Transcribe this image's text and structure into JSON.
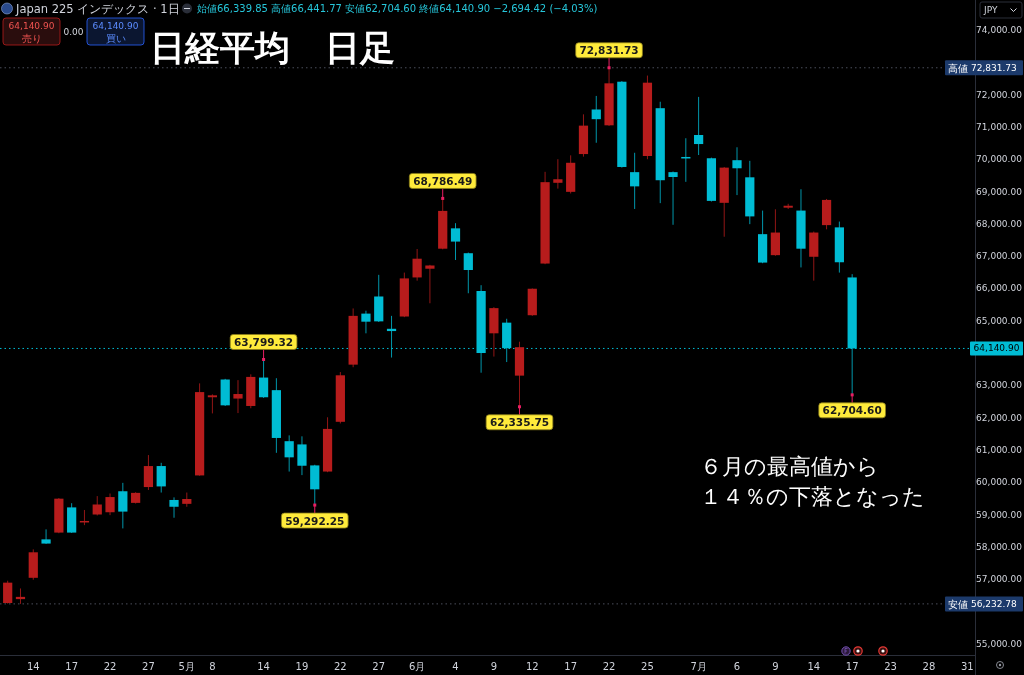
{
  "chart_data": {
    "type": "candlestick",
    "title": "日経平均　日足",
    "subtitle": "Japan 225 インデックス · 1日",
    "ylabel": "JPY",
    "categories": [
      null,
      null,
      "14",
      null,
      null,
      "17",
      null,
      null,
      "22",
      null,
      null,
      "27",
      null,
      null,
      "5月",
      null,
      "8",
      null,
      null,
      null,
      "14",
      null,
      null,
      "19",
      null,
      null,
      "22",
      null,
      null,
      "27",
      null,
      null,
      "6月",
      null,
      null,
      "4",
      null,
      null,
      "9",
      null,
      null,
      "12",
      null,
      null,
      "17",
      null,
      null,
      "22",
      null,
      null,
      "25",
      null,
      null,
      null,
      "7月",
      null,
      null,
      "6",
      null,
      null,
      "9",
      null,
      null,
      "14",
      null,
      null,
      "17",
      null,
      null,
      "23",
      null,
      null,
      "28",
      null,
      null,
      "31"
    ],
    "ohlc": [
      [
        56260,
        56950,
        56240,
        56890
      ],
      [
        56380,
        56710,
        56232.78,
        56450
      ],
      [
        57040,
        57920,
        56980,
        57830
      ],
      [
        58230,
        58540,
        58090,
        58100
      ],
      [
        58440,
        59510,
        58420,
        59490
      ],
      [
        59220,
        59350,
        58430,
        58440
      ],
      [
        58780,
        59140,
        58670,
        58800
      ],
      [
        59000,
        59570,
        58970,
        59310
      ],
      [
        59070,
        59650,
        58980,
        59540
      ],
      [
        59720,
        59980,
        58570,
        59090
      ],
      [
        59360,
        59690,
        59340,
        59670
      ],
      [
        59850,
        60840,
        59760,
        60500
      ],
      [
        60500,
        60600,
        59680,
        59870
      ],
      [
        59450,
        59530,
        58900,
        59240
      ],
      [
        59330,
        59680,
        59240,
        59480
      ],
      [
        60210,
        63060,
        60200,
        62790
      ],
      [
        62630,
        62720,
        62130,
        62690
      ],
      [
        63180,
        63200,
        62360,
        62380
      ],
      [
        62590,
        63160,
        62140,
        62730
      ],
      [
        62360,
        63340,
        62290,
        63260
      ],
      [
        63240,
        63799.32,
        62610,
        62630
      ],
      [
        62850,
        63220,
        60910,
        61370
      ],
      [
        61270,
        61450,
        60330,
        60770
      ],
      [
        61170,
        61420,
        60220,
        60510
      ],
      [
        60520,
        60540,
        59292.25,
        59780
      ],
      [
        60330,
        62010,
        60310,
        61650
      ],
      [
        61870,
        63410,
        61820,
        63310
      ],
      [
        63640,
        65380,
        63560,
        65150
      ],
      [
        65220,
        65310,
        64610,
        64970
      ],
      [
        65750,
        66420,
        64960,
        64980
      ],
      [
        64750,
        65150,
        63860,
        64680
      ],
      [
        65130,
        66490,
        65110,
        66310
      ],
      [
        66340,
        67220,
        66240,
        66920
      ],
      [
        66610,
        66730,
        65540,
        66710
      ],
      [
        67230,
        68786.49,
        67210,
        68400
      ],
      [
        67860,
        68020,
        66880,
        67450
      ],
      [
        67090,
        67110,
        65850,
        66570
      ],
      [
        65920,
        66100,
        63390,
        64000
      ],
      [
        64610,
        65420,
        63890,
        65390
      ],
      [
        64940,
        65060,
        63720,
        64150
      ],
      [
        63300,
        64350,
        62335.75,
        64180
      ],
      [
        65170,
        66000,
        65150,
        65990
      ],
      [
        66770,
        69610,
        66750,
        69290
      ],
      [
        69270,
        70000,
        69090,
        69380
      ],
      [
        68990,
        70120,
        68940,
        69890
      ],
      [
        70160,
        71390,
        70080,
        71040
      ],
      [
        71540,
        71960,
        70510,
        71240
      ],
      [
        71050,
        72831.73,
        71030,
        72350
      ],
      [
        72400,
        72420,
        69740,
        69760
      ],
      [
        69600,
        70200,
        68460,
        69160
      ],
      [
        70100,
        72590,
        70000,
        72370
      ],
      [
        71580,
        71780,
        68640,
        69350
      ],
      [
        69600,
        69620,
        67970,
        69450
      ],
      [
        70070,
        70650,
        69300,
        70050
      ],
      [
        70750,
        71930,
        70130,
        70470
      ],
      [
        70030,
        70050,
        68690,
        68710
      ],
      [
        68650,
        69760,
        67600,
        69740
      ],
      [
        69970,
        70370,
        68890,
        69720
      ],
      [
        69440,
        69950,
        67990,
        68230
      ],
      [
        67680,
        68410,
        66780,
        66800
      ],
      [
        67030,
        68450,
        67010,
        67730
      ],
      [
        68500,
        68620,
        68460,
        68560
      ],
      [
        68410,
        69070,
        66650,
        67230
      ],
      [
        66980,
        67760,
        66240,
        67730
      ],
      [
        67960,
        68770,
        67830,
        68740
      ],
      [
        67890,
        68070,
        66490,
        66810
      ],
      [
        66339.85,
        66441.77,
        62704.6,
        64140.9
      ],
      null,
      null,
      null,
      null,
      null,
      null,
      null,
      null,
      null
    ],
    "colors": [
      "#b71c1c",
      "#b71c1c",
      "#b71c1c",
      "#00bcd4",
      "#b71c1c",
      "#00bcd4",
      "#b71c1c",
      "#b71c1c",
      "#b71c1c",
      "#00bcd4",
      "#b71c1c",
      "#b71c1c",
      "#00bcd4",
      "#00bcd4",
      "#b71c1c",
      "#b71c1c",
      "#b71c1c",
      "#00bcd4",
      "#b71c1c",
      "#b71c1c",
      "#00bcd4",
      "#00bcd4",
      "#00bcd4",
      "#00bcd4",
      "#00bcd4",
      "#b71c1c",
      "#b71c1c",
      "#b71c1c",
      "#00bcd4",
      "#00bcd4",
      "#00bcd4",
      "#b71c1c",
      "#b71c1c",
      "#b71c1c",
      "#b71c1c",
      "#00bcd4",
      "#00bcd4",
      "#00bcd4",
      "#b71c1c",
      "#00bcd4",
      "#b71c1c",
      "#b71c1c",
      "#b71c1c",
      "#b71c1c",
      "#b71c1c",
      "#b71c1c",
      "#00bcd4",
      "#b71c1c",
      "#00bcd4",
      "#00bcd4",
      "#b71c1c",
      "#00bcd4",
      "#00bcd4",
      "#00bcd4",
      "#00bcd4",
      "#00bcd4",
      "#b71c1c",
      "#00bcd4",
      "#00bcd4",
      "#00bcd4",
      "#b71c1c",
      "#b71c1c",
      "#00bcd4",
      "#b71c1c",
      "#b71c1c",
      "#00bcd4",
      "#00bcd4",
      null,
      null,
      null,
      null,
      null,
      null,
      null,
      null,
      null
    ],
    "ylim": [
      54650,
      74930
    ],
    "yticks": [
      {
        "value": 55000,
        "label": "55,000.00"
      },
      {
        "value": 57000,
        "label": "57,000.00"
      },
      {
        "value": 58000,
        "label": "58,000.00"
      },
      {
        "value": 59000,
        "label": "59,000.00"
      },
      {
        "value": 60000,
        "label": "60,000.00"
      },
      {
        "value": 61000,
        "label": "61,000.00"
      },
      {
        "value": 62000,
        "label": "62,000.00"
      },
      {
        "value": 63000,
        "label": "63,000.00"
      },
      {
        "value": 65000,
        "label": "65,000.00"
      },
      {
        "value": 66000,
        "label": "66,000.00"
      },
      {
        "value": 67000,
        "label": "67,000.00"
      },
      {
        "value": 68000,
        "label": "68,000.00"
      },
      {
        "value": 69000,
        "label": "69,000.00"
      },
      {
        "value": 70000,
        "label": "70,000.00"
      },
      {
        "value": 71000,
        "label": "71,000.00"
      },
      {
        "value": 72000,
        "label": "72,000.00"
      },
      {
        "value": 74000,
        "label": "74,000.00"
      }
    ],
    "ref_lines": [
      {
        "axis": "y",
        "value": 72831.73,
        "label": "高値 72,831.73",
        "color": "#4a4e5a",
        "line_style": "dotted"
      },
      {
        "axis": "y",
        "value": 64140.9,
        "label": "64,140.90",
        "color": "#00bcd4",
        "line_style": "dotted"
      },
      {
        "axis": "y",
        "value": 56232.78,
        "label": "安値 56,232.78",
        "color": "#4a4e5a",
        "line_style": "dotted"
      }
    ],
    "annotations": [
      {
        "text": "72,831.73",
        "y": 72831.73
      },
      {
        "text": "68,786.49",
        "y": 68786.49
      },
      {
        "text": "63,799.32",
        "y": 63799.32
      },
      {
        "text": "59,292.25",
        "y": 59292.25
      },
      {
        "text": "62,335.75",
        "y": 62335.75
      },
      {
        "text": "62,704.60",
        "y": 62704.6
      },
      "６月の最高値から",
      "１４％の下落となった",
      "始値66,339.85 高値66,441.77 安値62,704.60 終値64,140.90 −2,694.42 (−4.03%)",
      "64,140.90",
      "売り",
      "0.00",
      "64,140.90",
      "買い"
    ]
  }
}
